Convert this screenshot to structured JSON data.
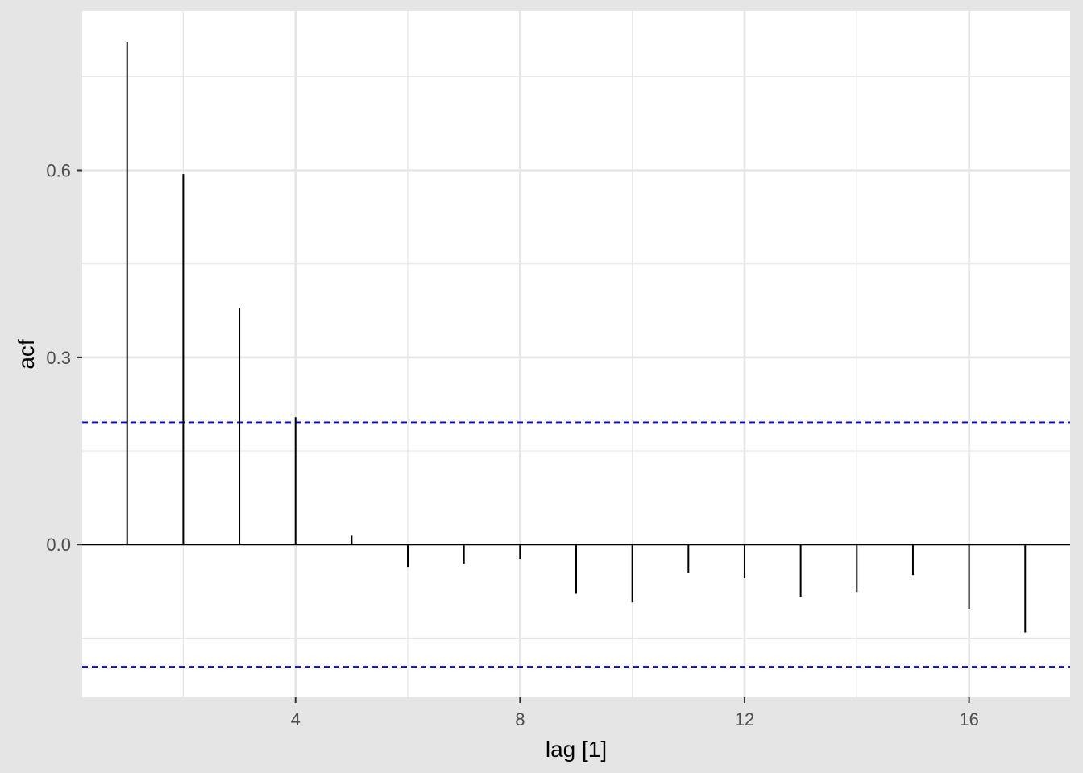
{
  "chart_data": {
    "type": "bar",
    "subtype": "acf-lollipop",
    "title": "",
    "xlabel": "lag [1]",
    "ylabel": "acf",
    "x": [
      1,
      2,
      3,
      4,
      5,
      6,
      7,
      8,
      9,
      10,
      11,
      12,
      13,
      14,
      15,
      16,
      17
    ],
    "values": [
      0.806,
      0.594,
      0.379,
      0.204,
      0.014,
      -0.036,
      -0.031,
      -0.023,
      -0.079,
      -0.093,
      -0.045,
      -0.054,
      -0.084,
      -0.076,
      -0.049,
      -0.103,
      -0.141
    ],
    "xlim": [
      0.2,
      17.8
    ],
    "ylim": [
      -0.245,
      0.855
    ],
    "xticks": [
      4,
      8,
      12,
      16
    ],
    "xtick_labels": [
      "4",
      "8",
      "12",
      "16"
    ],
    "yticks": [
      0.0,
      0.3,
      0.6
    ],
    "ytick_labels": [
      "0.0",
      "0.3",
      "0.6"
    ],
    "confidence_bounds": [
      0.196,
      -0.196
    ],
    "grid": true,
    "colors": {
      "panel_background": "#ffffff",
      "plot_background": "#e5e5e5",
      "grid": "#e6e6e6",
      "bar": "#000000",
      "zero_line": "#000000",
      "confidence": "#0000ff",
      "tick_text": "#4d4d4d"
    }
  }
}
